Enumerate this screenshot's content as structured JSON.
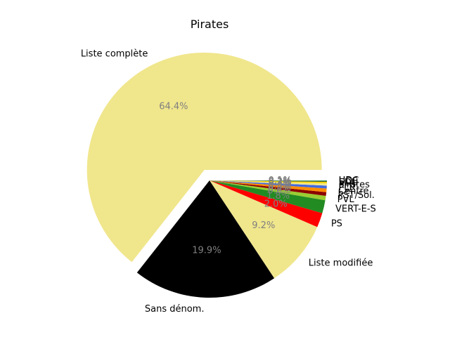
{
  "chart_data": {
    "type": "pie",
    "title": "Pirates",
    "slices": [
      {
        "label": "Liste complète",
        "value": 64.4,
        "pct_label": "64.4%",
        "color": "#f0e68c",
        "explode": true
      },
      {
        "label": "Sans dénom.",
        "value": 19.9,
        "pct_label": "19.9%",
        "color": "#000000",
        "explode": false
      },
      {
        "label": "Liste modifiée",
        "value": 9.2,
        "pct_label": "9.2%",
        "color": "#f0e68c",
        "explode": false
      },
      {
        "label": "PS",
        "value": 2.0,
        "pct_label": "2.0%",
        "color": "#ff0000",
        "explode": false
      },
      {
        "label": "VERT-E-S",
        "value": 1.8,
        "pct_label": "1.8%",
        "color": "#228b22",
        "explode": false
      },
      {
        "label": "PVL",
        "value": 0.6,
        "pct_label": "0.6%",
        "color": "#9acd32",
        "explode": false
      },
      {
        "label": "PST/Sol.",
        "value": 0.5,
        "pct_label": "0.5%",
        "color": "#8b0000",
        "explode": false
      },
      {
        "label": "Centre",
        "value": 0.5,
        "pct_label": "0.5%",
        "color": "#ff8c00",
        "explode": false
      },
      {
        "label": "PLR",
        "value": 0.4,
        "pct_label": "0.4%",
        "color": "#4169e1",
        "explode": false
      },
      {
        "label": "Pirates",
        "value": 0.3,
        "pct_label": "0.3%",
        "color": "#f0e68c",
        "explode": false
      },
      {
        "label": "EDU",
        "value": 0.2,
        "pct_label": "0.2%",
        "color": "#ffd700",
        "explode": false
      },
      {
        "label": "UDF",
        "value": 0.1,
        "pct_label": "0.1%",
        "color": "#556b2f",
        "explode": false
      },
      {
        "label": "UDC",
        "value": 0.1,
        "pct_label": "0.1%",
        "color": "#2e8b57",
        "explode": false
      }
    ]
  }
}
